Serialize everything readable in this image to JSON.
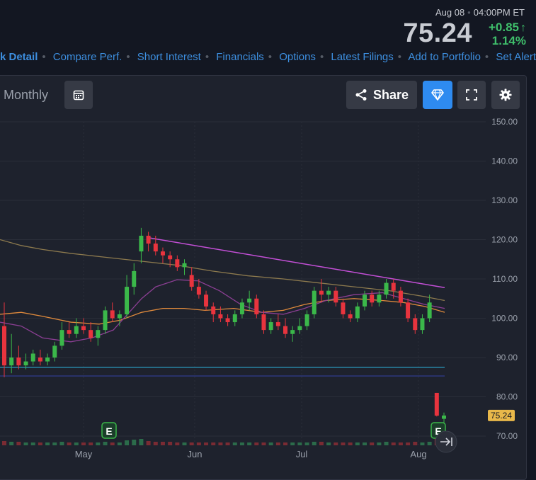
{
  "header": {
    "date": "Aug 08",
    "time": "04:00PM ET",
    "price": "75.24",
    "change": "+0.85",
    "change_pct": "1.14%",
    "up_color": "#3fbf6b"
  },
  "nav": {
    "links": [
      "k Detail",
      "Compare Perf.",
      "Short Interest",
      "Financials",
      "Options",
      "Latest Filings",
      "Add to Portfolio",
      "Set Alert"
    ]
  },
  "toolbar": {
    "timeframe": "Monthly",
    "share_label": "Share",
    "icons": [
      "calendar-icon",
      "share-icon",
      "diamond-icon",
      "fullscreen-icon",
      "gear-icon"
    ]
  },
  "chart_data": {
    "type": "candlestick",
    "x_labels": [
      "May",
      "Jun",
      "Jul",
      "Aug"
    ],
    "y_ticks": [
      "150.00",
      "140.00",
      "130.00",
      "120.00",
      "110.00",
      "100.00",
      "90.00",
      "80.00",
      "70.00"
    ],
    "ylim": [
      68,
      152
    ],
    "last_price_label": "75.24",
    "earnings_markers": [
      "E",
      "E"
    ],
    "colors": {
      "up": "#26a69a",
      "down": "#ef5350",
      "green": "#3bb84a",
      "red": "#e8343e",
      "sma_tan": "#8d7a4e",
      "sma_orange": "#e08a3c",
      "sma_purple": "#8b3f93",
      "trend_pink": "#c34fd6",
      "support_cyan": "#2a9bc0",
      "support_navy": "#2f3b86"
    },
    "candles": [
      [
        98,
        104,
        85,
        88
      ],
      [
        88,
        96,
        86,
        90
      ],
      [
        90,
        93,
        87,
        88
      ],
      [
        88,
        91,
        87,
        89
      ],
      [
        89,
        92,
        88,
        91
      ],
      [
        90,
        92,
        88,
        89
      ],
      [
        89,
        91,
        88,
        90
      ],
      [
        90,
        94,
        89,
        93
      ],
      [
        93,
        99,
        92,
        97
      ],
      [
        97,
        99,
        95,
        96
      ],
      [
        96,
        100,
        95,
        98
      ],
      [
        98,
        100,
        96,
        97
      ],
      [
        97,
        99,
        94,
        95
      ],
      [
        95,
        98,
        93,
        97
      ],
      [
        97,
        103,
        96,
        102
      ],
      [
        102,
        104,
        99,
        100
      ],
      [
        100,
        102,
        98,
        101
      ],
      [
        101,
        111,
        100,
        108
      ],
      [
        108,
        114,
        106,
        112
      ],
      [
        117,
        123,
        114,
        121
      ],
      [
        121,
        122,
        117,
        119
      ],
      [
        119,
        121,
        116,
        117
      ],
      [
        117,
        118,
        114,
        116
      ],
      [
        116,
        117,
        113,
        115
      ],
      [
        115,
        116,
        112,
        113
      ],
      [
        113,
        115,
        111,
        114
      ],
      [
        111,
        113,
        107,
        108
      ],
      [
        108,
        110,
        105,
        106
      ],
      [
        106,
        107,
        102,
        103
      ],
      [
        103,
        104,
        99,
        101
      ],
      [
        101,
        103,
        99,
        100
      ],
      [
        100,
        101,
        98,
        99
      ],
      [
        99,
        102,
        98,
        101
      ],
      [
        101,
        105,
        100,
        104
      ],
      [
        104,
        107,
        102,
        105
      ],
      [
        105,
        106,
        100,
        101
      ],
      [
        101,
        102,
        96,
        97
      ],
      [
        97,
        100,
        96,
        99
      ],
      [
        99,
        101,
        97,
        98
      ],
      [
        98,
        100,
        95,
        96
      ],
      [
        96,
        98,
        94,
        97
      ],
      [
        97,
        100,
        96,
        98
      ],
      [
        98,
        102,
        97,
        101
      ],
      [
        101,
        108,
        100,
        107
      ],
      [
        107,
        110,
        104,
        106
      ],
      [
        106,
        108,
        104,
        107
      ],
      [
        107,
        108,
        103,
        104
      ],
      [
        104,
        105,
        100,
        101
      ],
      [
        101,
        102,
        99,
        100
      ],
      [
        100,
        104,
        99,
        103
      ],
      [
        103,
        107,
        102,
        106
      ],
      [
        106,
        107,
        103,
        104
      ],
      [
        104,
        107,
        103,
        106
      ],
      [
        106,
        110,
        105,
        109
      ],
      [
        109,
        110,
        105,
        107
      ],
      [
        107,
        108,
        103,
        104
      ],
      [
        104,
        105,
        99,
        100
      ],
      [
        100,
        101,
        96,
        97
      ],
      [
        97,
        101,
        96,
        100
      ],
      [
        100,
        106,
        99,
        104
      ],
      [
        81,
        81,
        75,
        75.2
      ],
      [
        74.4,
        76,
        73,
        75.24
      ]
    ],
    "volume": [
      6,
      5,
      5,
      4,
      4,
      4,
      4,
      4,
      5,
      4,
      4,
      4,
      4,
      4,
      5,
      4,
      4,
      7,
      8,
      9,
      6,
      5,
      5,
      5,
      4,
      4,
      4,
      4,
      4,
      4,
      4,
      4,
      4,
      4,
      4,
      4,
      4,
      4,
      4,
      4,
      4,
      4,
      4,
      5,
      5,
      4,
      4,
      4,
      4,
      4,
      4,
      4,
      4,
      5,
      4,
      4,
      4,
      5,
      4,
      5,
      14,
      9
    ]
  }
}
